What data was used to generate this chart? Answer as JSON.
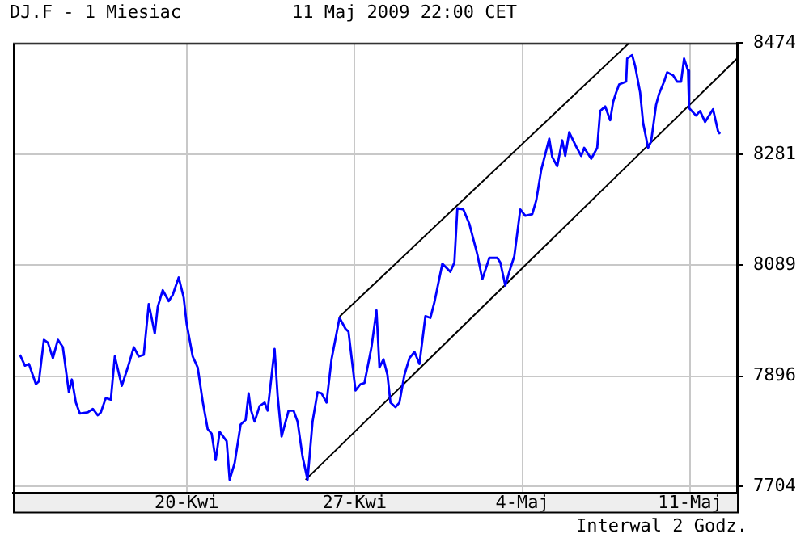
{
  "chart_data": {
    "type": "line",
    "title": "DJ.F - 1 Miesiac",
    "subtitle": "11 Maj 2009 22:00 CET",
    "annotations": [
      "Interwal 2 Godz."
    ],
    "xlim": [
      "2009-04-12T18:00",
      "2009-05-12T23:00"
    ],
    "xticks": [
      {
        "value": "2009-04-20",
        "label": "20-Kwi"
      },
      {
        "value": "2009-04-27",
        "label": "27-Kwi"
      },
      {
        "value": "2009-05-04",
        "label": "4-Maj"
      },
      {
        "value": "2009-05-11",
        "label": "11-Maj"
      }
    ],
    "ylim": [
      7694,
      8474
    ],
    "yticks": [
      7704,
      7896,
      8089,
      8281,
      8474
    ],
    "grid": true,
    "legend": false,
    "marker": "none",
    "line_style": "solid",
    "series": [
      {
        "color": "#0000ff",
        "x": [
          "2009-04-13T01:00",
          "2009-04-13T06:00",
          "2009-04-13T10:00",
          "2009-04-13T17:00",
          "2009-04-13T20:00",
          "2009-04-14T01:00",
          "2009-04-14T05:00",
          "2009-04-14T10:00",
          "2009-04-14T15:00",
          "2009-04-14T20:00",
          "2009-04-15T02:00",
          "2009-04-15T05:00",
          "2009-04-15T09:00",
          "2009-04-15T13:00",
          "2009-04-15T21:00",
          "2009-04-16T02:00",
          "2009-04-16T07:00",
          "2009-04-16T10:00",
          "2009-04-16T15:00",
          "2009-04-16T20:00",
          "2009-04-17T00:00",
          "2009-04-17T07:00",
          "2009-04-17T13:00",
          "2009-04-17T19:00",
          "2009-04-18T00:00",
          "2009-04-18T05:00",
          "2009-04-18T10:00",
          "2009-04-18T16:00",
          "2009-04-18T19:00",
          "2009-04-19T00:00",
          "2009-04-19T06:00",
          "2009-04-19T10:00",
          "2009-04-19T16:00",
          "2009-04-19T21:00",
          "2009-04-20T00:00",
          "2009-04-20T06:00",
          "2009-04-20T11:00",
          "2009-04-20T16:00",
          "2009-04-20T21:00",
          "2009-04-21T01:00",
          "2009-04-21T05:00",
          "2009-04-21T09:00",
          "2009-04-21T16:00",
          "2009-04-21T19:00",
          "2009-04-22T00:00",
          "2009-04-22T06:00",
          "2009-04-22T11:00",
          "2009-04-22T14:00",
          "2009-04-22T16:00",
          "2009-04-22T20:00",
          "2009-04-23T01:00",
          "2009-04-23T06:00",
          "2009-04-23T09:00",
          "2009-04-23T16:00",
          "2009-04-23T19:00",
          "2009-04-23T23:00",
          "2009-04-24T06:00",
          "2009-04-24T11:00",
          "2009-04-24T15:00",
          "2009-04-24T20:00",
          "2009-04-25T01:00",
          "2009-04-25T06:00",
          "2009-04-25T11:00",
          "2009-04-25T15:00",
          "2009-04-25T20:00",
          "2009-04-26T01:00",
          "2009-04-26T09:00",
          "2009-04-26T15:00",
          "2009-04-26T18:00",
          "2009-04-27T01:00",
          "2009-04-27T06:00",
          "2009-04-27T10:00",
          "2009-04-27T17:00",
          "2009-04-27T22:00",
          "2009-04-28T01:00",
          "2009-04-28T05:00",
          "2009-04-28T09:00",
          "2009-04-28T12:00",
          "2009-04-28T17:00",
          "2009-04-28T21:00",
          "2009-04-29T02:00",
          "2009-04-29T07:00",
          "2009-04-29T12:00",
          "2009-04-29T17:00",
          "2009-04-29T23:00",
          "2009-04-30T04:00",
          "2009-04-30T08:00",
          "2009-04-30T16:00",
          "2009-05-01T00:00",
          "2009-05-01T04:00",
          "2009-05-01T07:00",
          "2009-05-01T13:00",
          "2009-05-01T19:00",
          "2009-05-02T03:00",
          "2009-05-02T08:00",
          "2009-05-02T15:00",
          "2009-05-02T23:00",
          "2009-05-03T02:00",
          "2009-05-03T07:00",
          "2009-05-03T11:00",
          "2009-05-03T16:00",
          "2009-05-03T22:00",
          "2009-05-04T03:00",
          "2009-05-04T10:00",
          "2009-05-04T14:00",
          "2009-05-04T19:00",
          "2009-05-05T03:00",
          "2009-05-05T06:00",
          "2009-05-05T11:00",
          "2009-05-05T16:00",
          "2009-05-05T19:00",
          "2009-05-05T23:00",
          "2009-05-06T06:00",
          "2009-05-06T11:00",
          "2009-05-06T14:00",
          "2009-05-06T21:00",
          "2009-05-07T03:00",
          "2009-05-07T06:00",
          "2009-05-07T11:00",
          "2009-05-07T16:00",
          "2009-05-07T19:00",
          "2009-05-07T22:00",
          "2009-05-08T01:00",
          "2009-05-08T08:00",
          "2009-05-08T09:00",
          "2009-05-08T14:00",
          "2009-05-08T17:00",
          "2009-05-08T22:00",
          "2009-05-09T01:00",
          "2009-05-09T06:00",
          "2009-05-09T09:00",
          "2009-05-09T14:00",
          "2009-05-09T17:00",
          "2009-05-09T22:00",
          "2009-05-10T01:00",
          "2009-05-10T07:00",
          "2009-05-10T11:00",
          "2009-05-10T15:00",
          "2009-05-10T18:00",
          "2009-05-10T22:00",
          "2009-05-10T23:00",
          "2009-05-11T06:00",
          "2009-05-11T10:00",
          "2009-05-11T15:00",
          "2009-05-11T23:00",
          "2009-05-12T04:00",
          "2009-05-12T06:00"
        ],
        "values": [
          7933,
          7914,
          7917,
          7882,
          7887,
          7959,
          7954,
          7927,
          7959,
          7946,
          7868,
          7890,
          7850,
          7831,
          7833,
          7839,
          7828,
          7833,
          7858,
          7855,
          7930,
          7879,
          7911,
          7946,
          7930,
          7933,
          8021,
          7970,
          8016,
          8045,
          8026,
          8037,
          8067,
          8032,
          7986,
          7930,
          7911,
          7852,
          7804,
          7796,
          7750,
          7799,
          7783,
          7716,
          7745,
          7812,
          7820,
          7866,
          7839,
          7817,
          7844,
          7850,
          7836,
          7943,
          7863,
          7791,
          7836,
          7836,
          7817,
          7756,
          7716,
          7817,
          7868,
          7866,
          7850,
          7925,
          7997,
          7978,
          7973,
          7871,
          7882,
          7884,
          7946,
          8010,
          7911,
          7925,
          7898,
          7850,
          7842,
          7850,
          7898,
          7927,
          7938,
          7917,
          8000,
          7997,
          8024,
          8091,
          8077,
          8093,
          8187,
          8185,
          8160,
          8107,
          8064,
          8101,
          8101,
          8093,
          8053,
          8077,
          8104,
          8185,
          8174,
          8177,
          8201,
          8254,
          8308,
          8276,
          8260,
          8305,
          8278,
          8319,
          8294,
          8278,
          8292,
          8273,
          8292,
          8356,
          8364,
          8340,
          8372,
          8388,
          8402,
          8407,
          8447,
          8453,
          8434,
          8388,
          8335,
          8292,
          8303,
          8367,
          8386,
          8407,
          8423,
          8418,
          8407,
          8407,
          8447,
          8426,
          8361,
          8348,
          8356,
          8337,
          8359,
          8321,
          8316
        ]
      },
      {
        "type": "line",
        "color": "#000000",
        "x": [
          "2009-04-26T09:00",
          "2009-05-08T11:00"
        ],
        "values": [
          7999,
          8474
        ]
      },
      {
        "type": "line",
        "color": "#000000",
        "x": [
          "2009-04-24T23:00",
          "2009-05-12T23:00"
        ],
        "values": [
          7716,
          8447
        ]
      }
    ]
  }
}
